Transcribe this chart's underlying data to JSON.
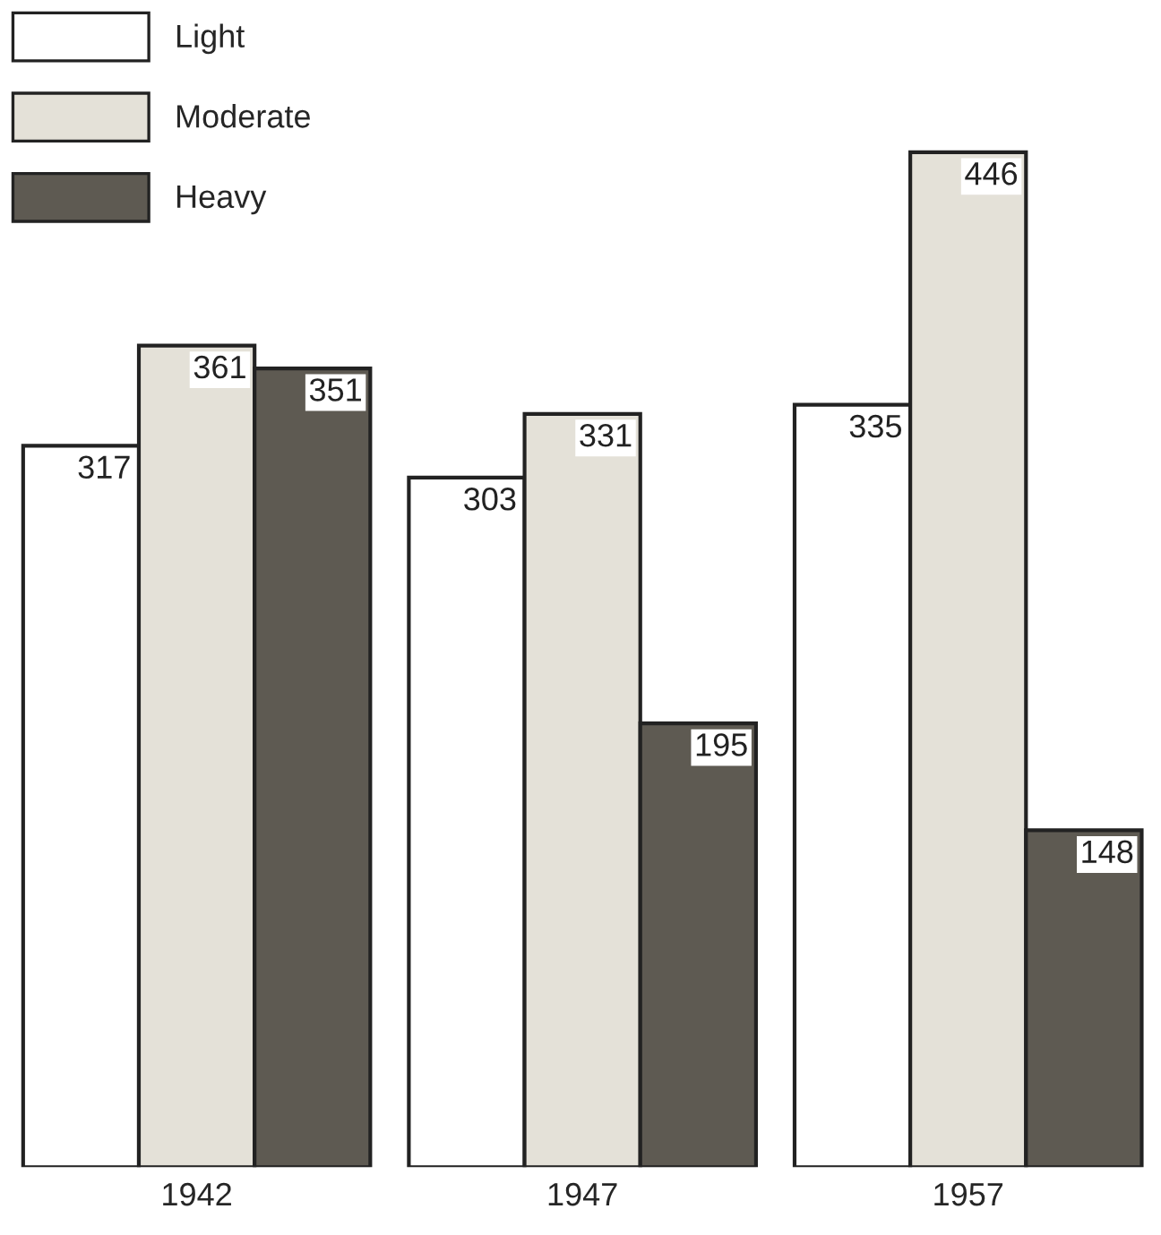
{
  "chart_data": {
    "type": "bar",
    "categories": [
      "1942",
      "1947",
      "1957"
    ],
    "series": [
      {
        "name": "Light",
        "color": "#ffffff",
        "values": [
          317,
          303,
          335
        ]
      },
      {
        "name": "Moderate",
        "color": "#e4e1d8",
        "values": [
          361,
          331,
          446
        ]
      },
      {
        "name": "Heavy",
        "color": "#5e5a52",
        "values": [
          351,
          195,
          148
        ]
      }
    ],
    "data_labels": true,
    "legend": "top left",
    "grid": false
  }
}
